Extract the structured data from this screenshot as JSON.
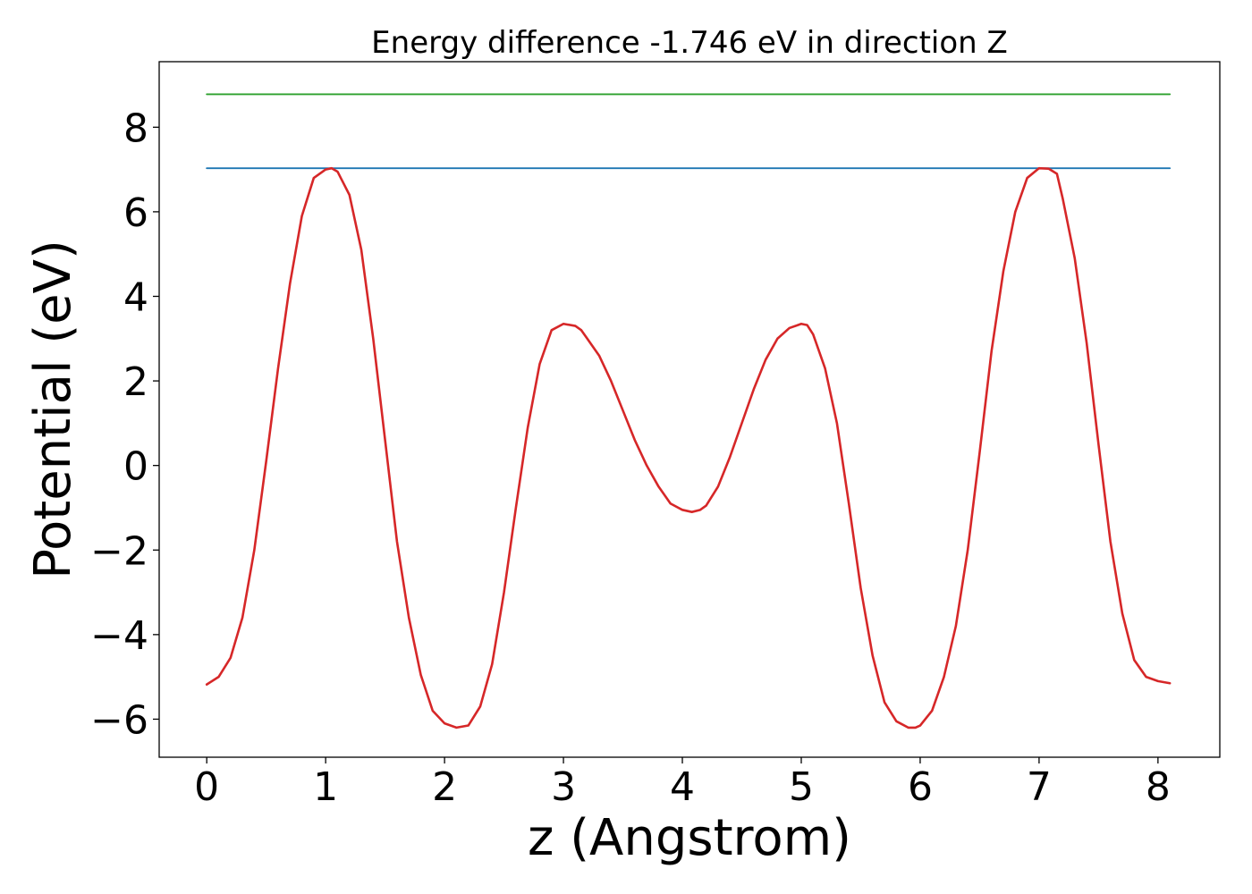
{
  "chart_data": {
    "type": "line",
    "title": "Energy difference -1.746 eV in direction Z",
    "xlabel": "z (Angstrom)",
    "ylabel": "Potential (eV)",
    "xlim": [
      -0.4,
      8.52
    ],
    "ylim": [
      -6.9,
      9.55
    ],
    "xticks": [
      0,
      1,
      2,
      3,
      4,
      5,
      6,
      7,
      8
    ],
    "xtick_labels": [
      "0",
      "1",
      "2",
      "3",
      "4",
      "5",
      "6",
      "7",
      "8"
    ],
    "yticks": [
      -6,
      -4,
      -2,
      0,
      2,
      4,
      6,
      8
    ],
    "ytick_labels": [
      "−6",
      "−4",
      "−2",
      "0",
      "2",
      "4",
      "6",
      "8"
    ],
    "grid": false,
    "series": [
      {
        "color": "#2ca02c",
        "x": [
          0,
          8.1
        ],
        "y": [
          8.78,
          8.78
        ]
      },
      {
        "color": "#1f77b4",
        "x": [
          0,
          8.1
        ],
        "y": [
          7.03,
          7.03
        ]
      },
      {
        "color": "#d62728",
        "x": [
          0,
          0.1,
          0.2,
          0.3,
          0.4,
          0.5,
          0.6,
          0.7,
          0.8,
          0.9,
          1.0,
          1.05,
          1.1,
          1.2,
          1.3,
          1.4,
          1.5,
          1.6,
          1.7,
          1.8,
          1.9,
          2.0,
          2.1,
          2.2,
          2.3,
          2.4,
          2.5,
          2.6,
          2.7,
          2.8,
          2.9,
          3.0,
          3.1,
          3.15,
          3.2,
          3.3,
          3.4,
          3.5,
          3.6,
          3.7,
          3.8,
          3.9,
          4.0,
          4.08,
          4.15,
          4.2,
          4.3,
          4.4,
          4.5,
          4.6,
          4.7,
          4.8,
          4.9,
          5.0,
          5.05,
          5.1,
          5.2,
          5.3,
          5.4,
          5.5,
          5.6,
          5.7,
          5.8,
          5.9,
          5.96,
          6.0,
          6.1,
          6.2,
          6.3,
          6.4,
          6.5,
          6.6,
          6.7,
          6.8,
          6.9,
          7.0,
          7.08,
          7.15,
          7.2,
          7.3,
          7.4,
          7.5,
          7.6,
          7.7,
          7.8,
          7.9,
          8.0,
          8.1
        ],
        "y": [
          -5.18,
          -5.0,
          -4.55,
          -3.6,
          -2.0,
          0.1,
          2.3,
          4.3,
          5.9,
          6.8,
          7.0,
          7.03,
          6.95,
          6.4,
          5.1,
          3.0,
          0.6,
          -1.8,
          -3.6,
          -4.95,
          -5.8,
          -6.1,
          -6.2,
          -6.15,
          -5.7,
          -4.7,
          -3.0,
          -1.0,
          0.9,
          2.4,
          3.2,
          3.35,
          3.3,
          3.2,
          3.0,
          2.6,
          2.0,
          1.3,
          0.6,
          0.0,
          -0.5,
          -0.9,
          -1.05,
          -1.1,
          -1.05,
          -0.95,
          -0.5,
          0.2,
          1.0,
          1.8,
          2.5,
          3.0,
          3.25,
          3.35,
          3.32,
          3.1,
          2.3,
          1.0,
          -0.9,
          -2.9,
          -4.5,
          -5.6,
          -6.05,
          -6.2,
          -6.2,
          -6.15,
          -5.8,
          -5.0,
          -3.8,
          -2.0,
          0.3,
          2.7,
          4.6,
          6.0,
          6.8,
          7.03,
          7.02,
          6.9,
          6.3,
          4.9,
          2.9,
          0.5,
          -1.8,
          -3.5,
          -4.6,
          -5.0,
          -5.1,
          -5.15
        ]
      }
    ]
  }
}
